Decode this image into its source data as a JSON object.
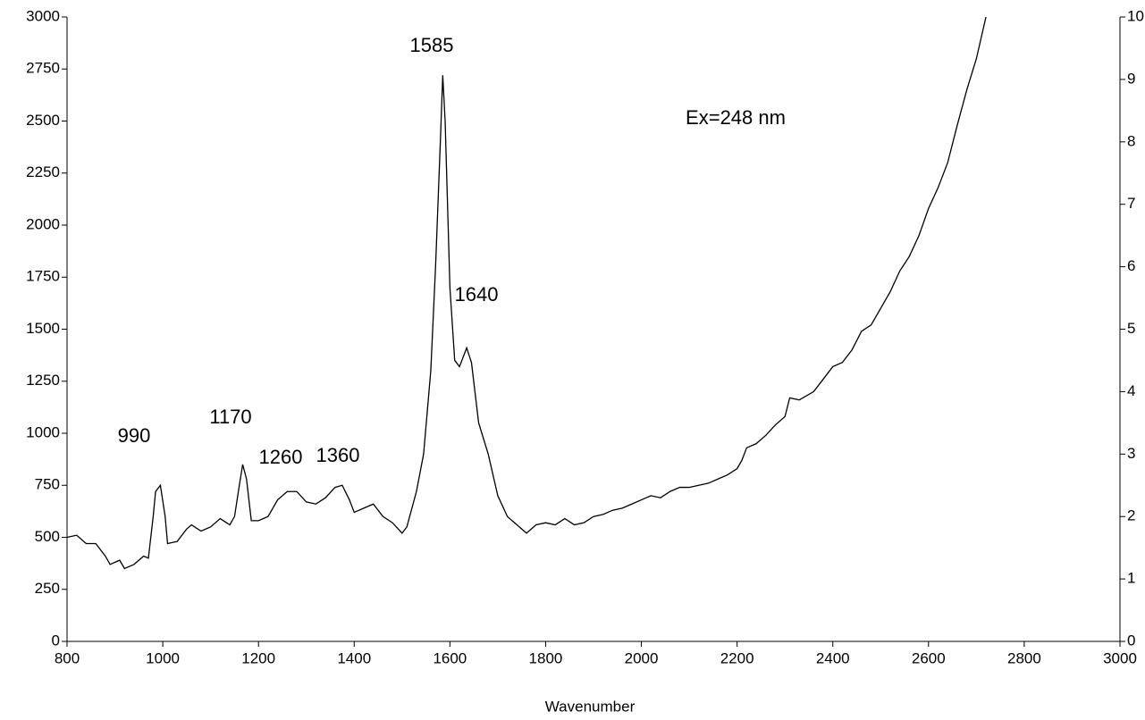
{
  "chart_data": {
    "type": "line",
    "x_label": "Wavenumber",
    "annotations": [
      "1585",
      "1640",
      "990",
      "1170",
      "1260",
      "1360",
      "Ex=248 nm"
    ],
    "x": [
      800,
      820,
      840,
      860,
      880,
      890,
      910,
      920,
      940,
      960,
      970,
      980,
      985,
      995,
      1005,
      1010,
      1030,
      1050,
      1060,
      1080,
      1100,
      1120,
      1140,
      1150,
      1160,
      1167,
      1175,
      1185,
      1200,
      1220,
      1240,
      1260,
      1280,
      1300,
      1320,
      1340,
      1360,
      1375,
      1390,
      1400,
      1420,
      1440,
      1460,
      1480,
      1500,
      1510,
      1530,
      1545,
      1560,
      1570,
      1580,
      1585,
      1590,
      1600,
      1610,
      1620,
      1635,
      1645,
      1660,
      1680,
      1700,
      1720,
      1740,
      1760,
      1780,
      1800,
      1820,
      1840,
      1860,
      1880,
      1900,
      1920,
      1940,
      1960,
      1980,
      2000,
      2020,
      2040,
      2060,
      2080,
      2100,
      2120,
      2140,
      2160,
      2180,
      2200,
      2210,
      2220,
      2240,
      2260,
      2280,
      2300,
      2310,
      2330,
      2360,
      2380,
      2400,
      2420,
      2440,
      2460,
      2480,
      2500,
      2520,
      2540,
      2560,
      2580,
      2600,
      2620,
      2640,
      2660,
      2680,
      2700,
      2715,
      2720
    ],
    "series": [
      {
        "color": "#000000",
        "values": [
          500,
          510,
          470,
          470,
          410,
          370,
          390,
          350,
          370,
          410,
          400,
          600,
          720,
          750,
          600,
          470,
          480,
          540,
          560,
          530,
          550,
          590,
          560,
          600,
          750,
          850,
          780,
          580,
          580,
          600,
          680,
          720,
          720,
          670,
          660,
          690,
          740,
          750,
          680,
          620,
          640,
          660,
          600,
          570,
          520,
          550,
          720,
          900,
          1300,
          1800,
          2400,
          2720,
          2500,
          1700,
          1350,
          1320,
          1410,
          1340,
          1050,
          900,
          700,
          600,
          560,
          520,
          560,
          570,
          560,
          590,
          560,
          570,
          600,
          610,
          630,
          640,
          660,
          680,
          700,
          690,
          720,
          740,
          740,
          750,
          760,
          780,
          800,
          830,
          870,
          930,
          950,
          990,
          1040,
          1080,
          1170,
          1160,
          1200,
          1260,
          1320,
          1340,
          1400,
          1490,
          1520,
          1600,
          1680,
          1780,
          1850,
          1950,
          2080,
          2180,
          2300,
          2480,
          2650,
          2800,
          2950,
          3000
        ]
      }
    ],
    "xlim": [
      800,
      3000
    ],
    "xticks": [
      800,
      1000,
      1200,
      1400,
      1600,
      1800,
      2000,
      2200,
      2400,
      2600,
      2800,
      3000
    ],
    "ylim": [
      0,
      3000
    ],
    "yticks": [
      0,
      250,
      500,
      750,
      1000,
      1250,
      1500,
      1750,
      2000,
      2250,
      2500,
      2750,
      3000
    ],
    "y2lim": [
      0,
      10
    ],
    "y2ticks": [
      0,
      1,
      2,
      3,
      4,
      5,
      6,
      7,
      8,
      9,
      10
    ]
  }
}
